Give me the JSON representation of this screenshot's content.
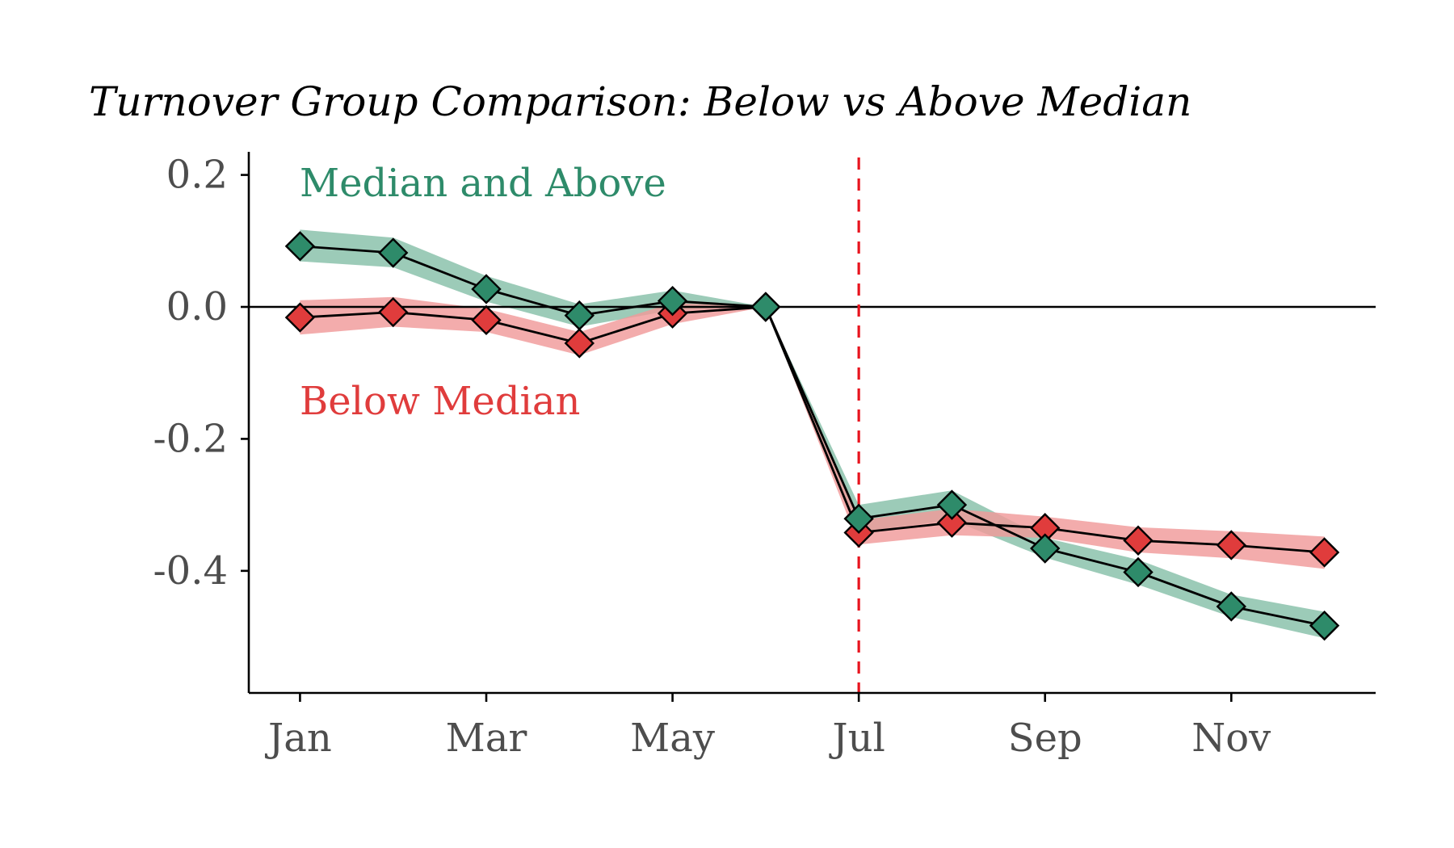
{
  "chart_data": {
    "type": "line",
    "title": "Turnover Group Comparison: Below vs Above Median",
    "xlabel": "",
    "ylabel": "",
    "x_months": [
      1,
      2,
      3,
      4,
      5,
      6,
      7,
      8,
      9,
      10,
      11,
      12
    ],
    "x_tick_labels": [
      {
        "month": 1,
        "label": "Jan"
      },
      {
        "month": 3,
        "label": "Mar"
      },
      {
        "month": 5,
        "label": "May"
      },
      {
        "month": 7,
        "label": "Jul"
      },
      {
        "month": 9,
        "label": "Sep"
      },
      {
        "month": 11,
        "label": "Nov"
      }
    ],
    "y_ticks": [
      0.2,
      0.0,
      -0.2,
      -0.4
    ],
    "y_tick_labels": [
      "0.2",
      "0.0",
      "-0.2",
      "-0.4"
    ],
    "xlim": [
      0.45,
      12.55
    ],
    "ylim": [
      -0.585,
      0.235
    ],
    "reference_vline_month": 7,
    "reference_hline": 0,
    "grid": false,
    "legend": "inline labels, top-left",
    "series": [
      {
        "name": "Median and Above",
        "color": "#2e8b6a",
        "band_color": "#86bfa8",
        "values": [
          0.092,
          0.082,
          0.027,
          -0.013,
          0.009,
          0.0,
          -0.321,
          -0.3,
          -0.366,
          -0.402,
          -0.454,
          -0.483
        ],
        "lower": [
          0.069,
          0.06,
          0.008,
          -0.03,
          -0.005,
          0.0,
          -0.341,
          -0.323,
          -0.38,
          -0.421,
          -0.47,
          -0.502
        ],
        "upper": [
          0.117,
          0.105,
          0.047,
          0.004,
          0.025,
          0.0,
          -0.3,
          -0.278,
          -0.35,
          -0.383,
          -0.436,
          -0.462
        ]
      },
      {
        "name": "Below Median",
        "color": "#e03c3c",
        "band_color": "#f09a9a",
        "values": [
          -0.016,
          -0.008,
          -0.02,
          -0.055,
          -0.01,
          0.0,
          -0.342,
          -0.327,
          -0.335,
          -0.354,
          -0.361,
          -0.372
        ],
        "lower": [
          -0.042,
          -0.03,
          -0.038,
          -0.073,
          -0.026,
          0.0,
          -0.36,
          -0.346,
          -0.35,
          -0.372,
          -0.381,
          -0.397
        ],
        "upper": [
          0.01,
          0.015,
          -0.003,
          -0.038,
          0.006,
          0.0,
          -0.323,
          -0.306,
          -0.318,
          -0.334,
          -0.34,
          -0.348
        ]
      }
    ]
  }
}
